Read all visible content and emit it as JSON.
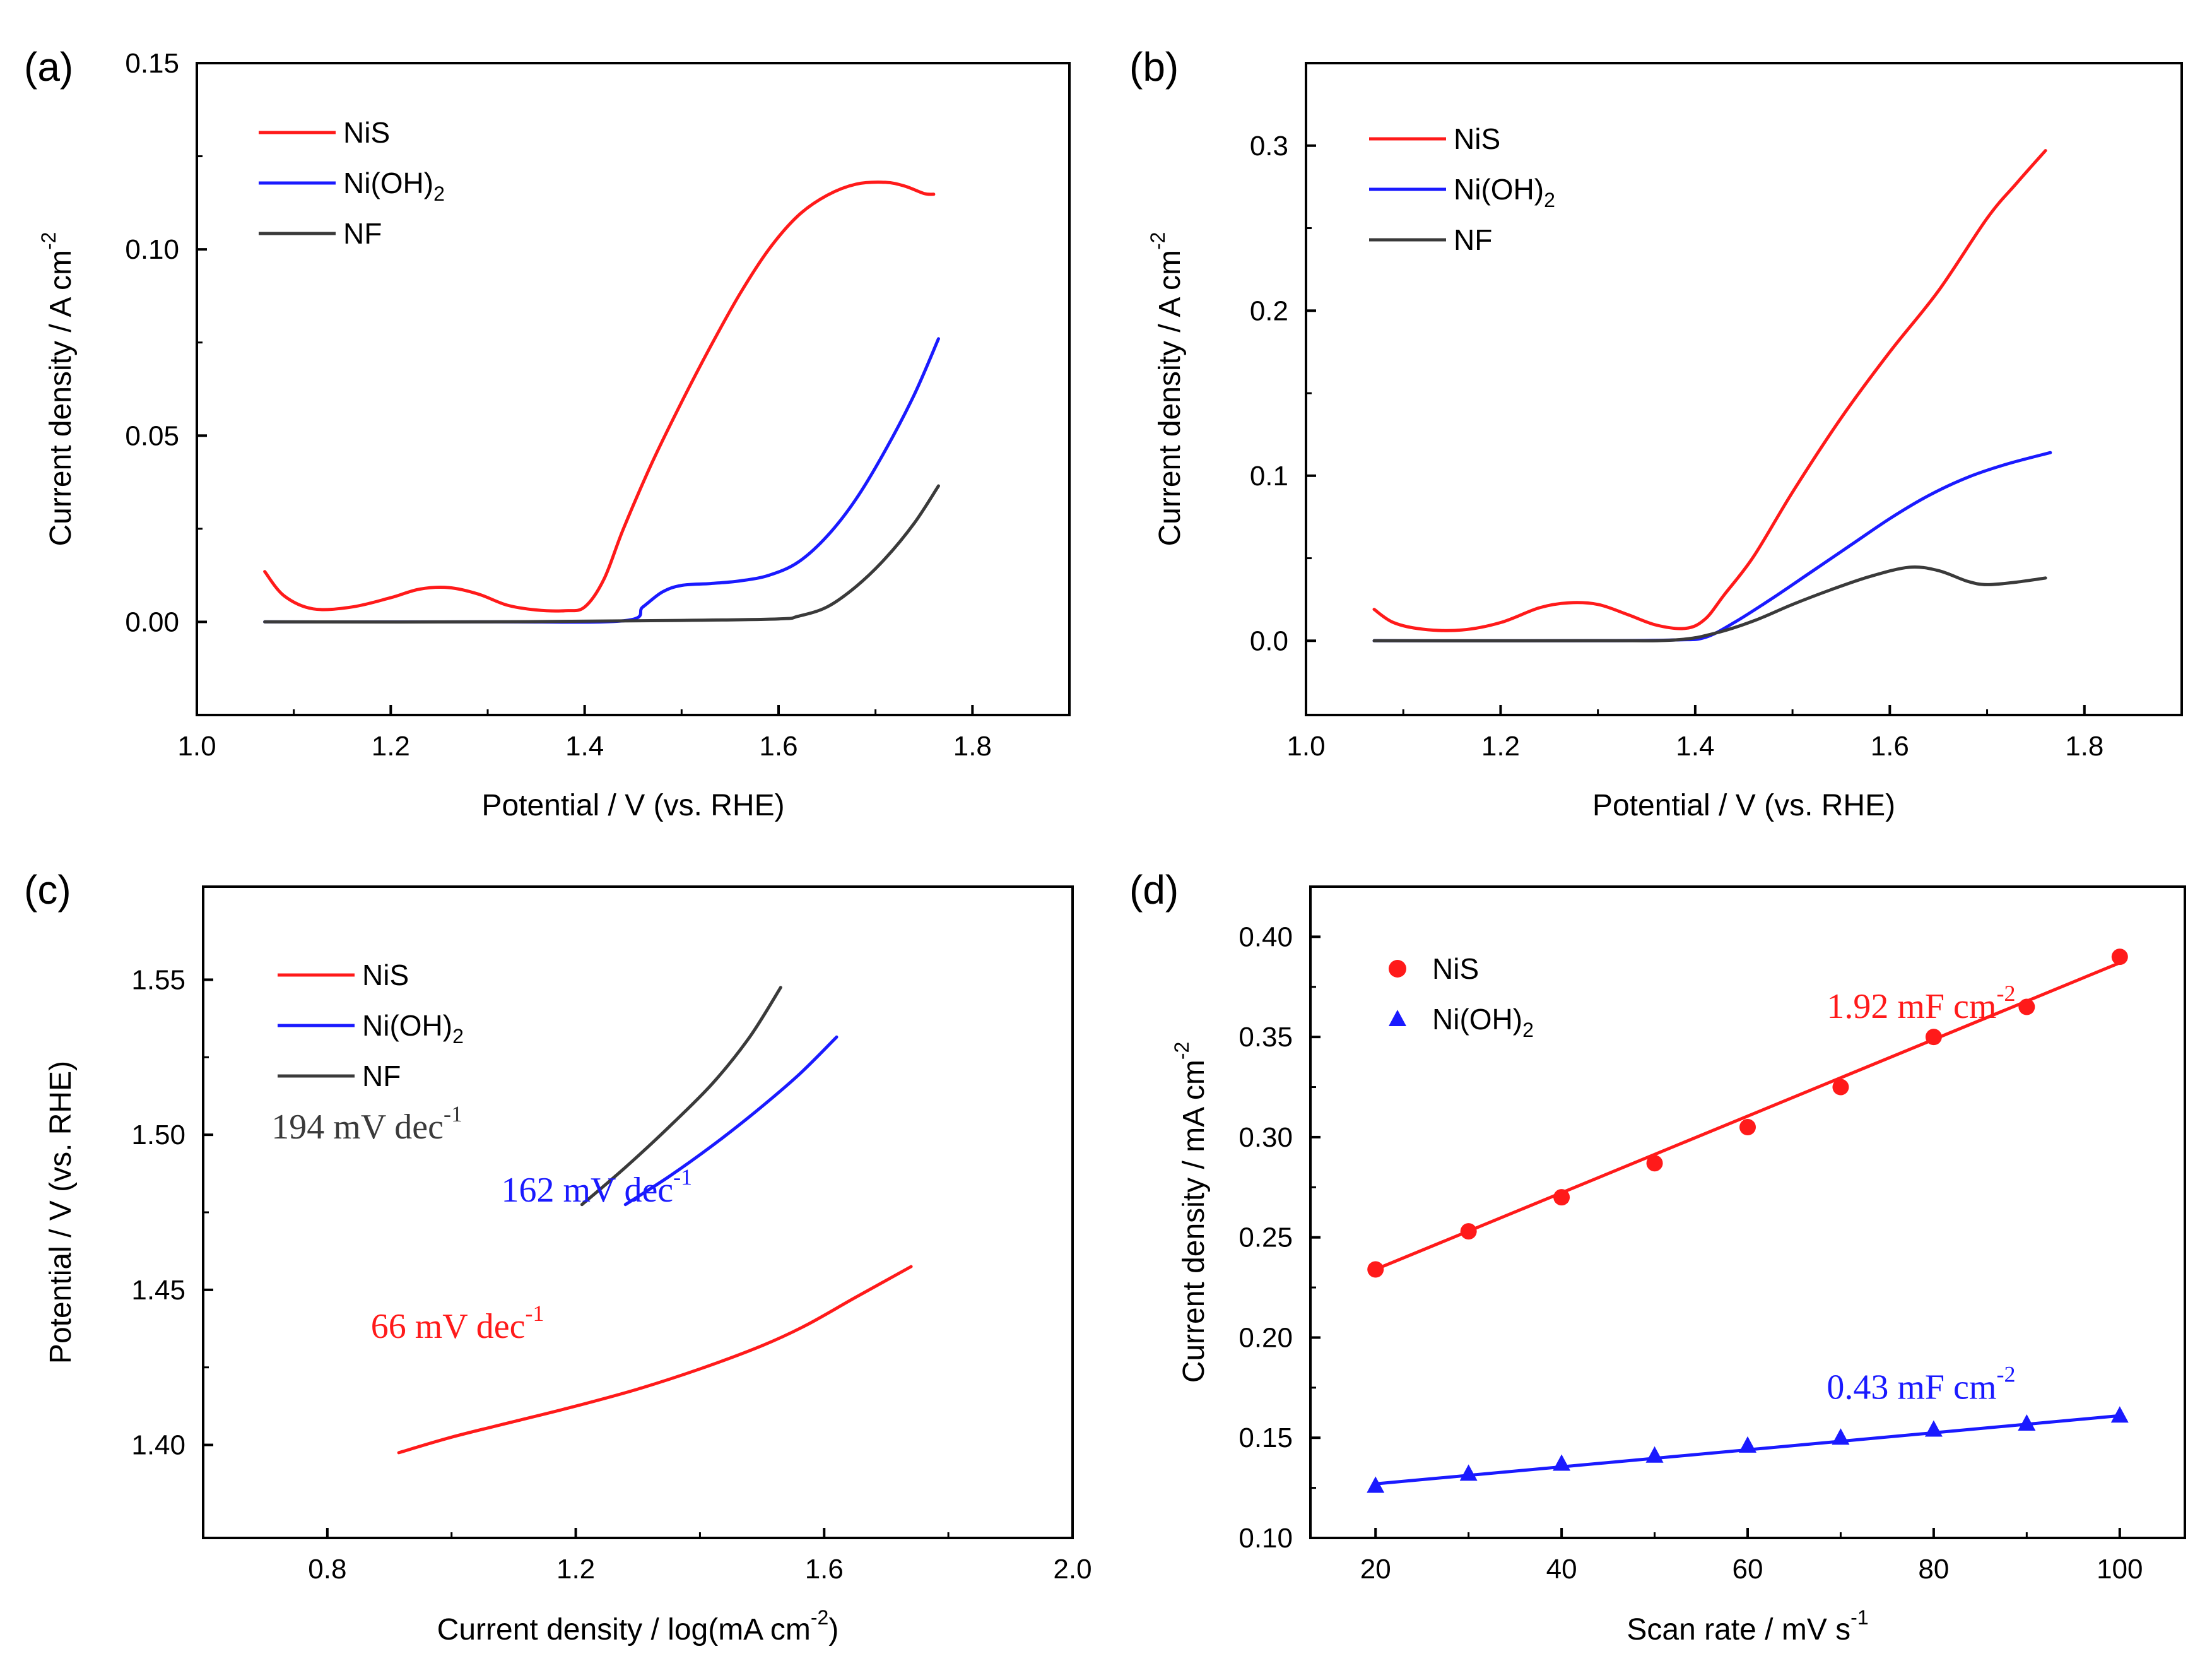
{
  "colors": {
    "NiS": "#ff1a1a",
    "NiOH2": "#1a1aff",
    "NF": "#3a3a3a",
    "axis": "#000000"
  },
  "chart_data": [
    {
      "id": "a",
      "panel_label": "(a)",
      "type": "line",
      "xlabel": "Potential / V (vs. RHE)",
      "ylabel": "Current density / A cm",
      "ylabel_sup": "-2",
      "xlim": [
        1.0,
        1.9
      ],
      "ylim": [
        -0.025,
        0.15
      ],
      "xticks": [
        1.0,
        1.2,
        1.4,
        1.6,
        1.8
      ],
      "xtick_labels": [
        "1.0",
        "1.2",
        "1.4",
        "1.6",
        "1.8"
      ],
      "yticks": [
        0.0,
        0.05,
        0.1,
        0.15
      ],
      "ytick_labels": [
        "0.00",
        "0.05",
        "0.10",
        "0.15"
      ],
      "legend": [
        "NiS",
        "Ni(OH)2",
        "NF"
      ],
      "series": [
        {
          "name": "NiS",
          "color_key": "NiS",
          "x": [
            1.07,
            1.09,
            1.12,
            1.16,
            1.2,
            1.23,
            1.26,
            1.29,
            1.32,
            1.35,
            1.38,
            1.4,
            1.42,
            1.44,
            1.47,
            1.5,
            1.53,
            1.56,
            1.59,
            1.62,
            1.65,
            1.68,
            1.71,
            1.73,
            1.75,
            1.76
          ],
          "y": [
            0.0135,
            0.007,
            0.0035,
            0.004,
            0.0065,
            0.0088,
            0.0092,
            0.0075,
            0.0045,
            0.0032,
            0.003,
            0.004,
            0.0115,
            0.025,
            0.043,
            0.059,
            0.074,
            0.088,
            0.1,
            0.109,
            0.1145,
            0.1175,
            0.118,
            0.117,
            0.115,
            0.1148
          ]
        },
        {
          "name": "Ni(OH)2",
          "color_key": "NiOH2",
          "x": [
            1.07,
            1.3,
            1.44,
            1.46,
            1.48,
            1.5,
            1.53,
            1.56,
            1.59,
            1.62,
            1.65,
            1.68,
            1.71,
            1.74,
            1.765
          ],
          "y": [
            0.0,
            0.0,
            0.0003,
            0.004,
            0.008,
            0.0098,
            0.0103,
            0.011,
            0.0125,
            0.016,
            0.023,
            0.033,
            0.046,
            0.061,
            0.076
          ]
        },
        {
          "name": "NF",
          "color_key": "NF",
          "x": [
            1.07,
            1.3,
            1.5,
            1.6,
            1.62,
            1.65,
            1.68,
            1.71,
            1.74,
            1.765
          ],
          "y": [
            0.0,
            0.0,
            0.0004,
            0.0008,
            0.0015,
            0.004,
            0.0095,
            0.017,
            0.0265,
            0.0365
          ]
        }
      ]
    },
    {
      "id": "b",
      "panel_label": "(b)",
      "type": "line",
      "xlabel": "Potential / V (vs. RHE)",
      "ylabel": "Current density / A cm",
      "ylabel_sup": "-2",
      "xlim": [
        1.0,
        1.9
      ],
      "ylim": [
        -0.045,
        0.35
      ],
      "xticks": [
        1.0,
        1.2,
        1.4,
        1.6,
        1.8
      ],
      "xtick_labels": [
        "1.0",
        "1.2",
        "1.4",
        "1.6",
        "1.8"
      ],
      "yticks": [
        0.0,
        0.1,
        0.2,
        0.3
      ],
      "ytick_labels": [
        "0.0",
        "0.1",
        "0.2",
        "0.3"
      ],
      "legend": [
        "NiS",
        "Ni(OH)2",
        "NF"
      ],
      "series": [
        {
          "name": "NiS",
          "color_key": "NiS",
          "x": [
            1.07,
            1.09,
            1.12,
            1.16,
            1.2,
            1.24,
            1.27,
            1.3,
            1.33,
            1.36,
            1.39,
            1.41,
            1.43,
            1.46,
            1.5,
            1.55,
            1.6,
            1.65,
            1.7,
            1.73,
            1.76
          ],
          "y": [
            0.019,
            0.011,
            0.007,
            0.0065,
            0.011,
            0.02,
            0.023,
            0.022,
            0.016,
            0.0095,
            0.0075,
            0.013,
            0.028,
            0.051,
            0.09,
            0.135,
            0.175,
            0.212,
            0.256,
            0.277,
            0.297
          ]
        },
        {
          "name": "Ni(OH)2",
          "color_key": "NiOH2",
          "x": [
            1.07,
            1.3,
            1.38,
            1.41,
            1.44,
            1.48,
            1.52,
            1.56,
            1.6,
            1.64,
            1.68,
            1.72,
            1.765
          ],
          "y": [
            0.0,
            0.0,
            0.0005,
            0.002,
            0.011,
            0.026,
            0.042,
            0.058,
            0.074,
            0.088,
            0.099,
            0.107,
            0.114
          ]
        },
        {
          "name": "NF",
          "color_key": "NF",
          "x": [
            1.07,
            1.3,
            1.38,
            1.42,
            1.46,
            1.5,
            1.54,
            1.58,
            1.62,
            1.65,
            1.68,
            1.7,
            1.73,
            1.76
          ],
          "y": [
            0.0,
            0.0,
            0.0005,
            0.0045,
            0.012,
            0.022,
            0.031,
            0.039,
            0.0445,
            0.0425,
            0.036,
            0.034,
            0.0355,
            0.038
          ]
        }
      ]
    },
    {
      "id": "c",
      "panel_label": "(c)",
      "type": "line",
      "xlabel": "Current density / log(mA cm",
      "xlabel_sup": "-2",
      "xlabel_end": ")",
      "ylabel": "Potential / V (vs. RHE)",
      "xlim": [
        0.6,
        2.0
      ],
      "ylim": [
        1.37,
        1.58
      ],
      "xticks": [
        0.8,
        1.2,
        1.6,
        2.0
      ],
      "xtick_labels": [
        "0.8",
        "1.2",
        "1.6",
        "2.0"
      ],
      "yticks": [
        1.4,
        1.45,
        1.5,
        1.55
      ],
      "ytick_labels": [
        "1.40",
        "1.45",
        "1.50",
        "1.55"
      ],
      "legend": [
        "NiS",
        "Ni(OH)2",
        "NF"
      ],
      "annotations": [
        {
          "label_key": "NF",
          "text": "194 mV dec",
          "sup": "-1",
          "x": 0.71,
          "y": 1.4988
        },
        {
          "label_key": "NiOH2",
          "text": "162 mV dec",
          "sup": "-1",
          "x": 1.08,
          "y": 1.4785
        },
        {
          "label_key": "NiS",
          "text": "66 mV dec",
          "sup": "-1",
          "x": 0.87,
          "y": 1.4345
        }
      ],
      "series": [
        {
          "name": "NiS",
          "color_key": "NiS",
          "x": [
            0.915,
            1.0,
            1.1,
            1.2,
            1.3,
            1.4,
            1.5,
            1.57,
            1.65,
            1.74
          ],
          "y": [
            1.3975,
            1.4025,
            1.4075,
            1.4125,
            1.418,
            1.4245,
            1.432,
            1.4385,
            1.4475,
            1.4575
          ]
        },
        {
          "name": "Ni(OH)2",
          "color_key": "NiOH2",
          "x": [
            1.28,
            1.35,
            1.42,
            1.49,
            1.56,
            1.62
          ],
          "y": [
            1.4775,
            1.4865,
            1.4965,
            1.5075,
            1.5195,
            1.5315
          ]
        },
        {
          "name": "NF",
          "color_key": "NF",
          "x": [
            1.21,
            1.28,
            1.35,
            1.42,
            1.48,
            1.53
          ],
          "y": [
            1.4775,
            1.4895,
            1.5025,
            1.5165,
            1.5315,
            1.5475
          ]
        }
      ]
    },
    {
      "id": "d",
      "panel_label": "(d)",
      "type": "scatter",
      "xlabel": "Scan rate / mV s",
      "xlabel_sup": "-1",
      "ylabel": "Current density / mA cm",
      "ylabel_sup": "-2",
      "xlim": [
        13,
        107
      ],
      "ylim": [
        0.1,
        0.425
      ],
      "xticks": [
        20,
        40,
        60,
        80,
        100
      ],
      "xtick_labels": [
        "20",
        "40",
        "60",
        "80",
        "100"
      ],
      "yticks": [
        0.1,
        0.15,
        0.2,
        0.25,
        0.3,
        0.35,
        0.4
      ],
      "ytick_labels": [
        "0.10",
        "0.15",
        "0.20",
        "0.25",
        "0.30",
        "0.35",
        "0.40"
      ],
      "legend": [
        "NiS",
        "Ni(OH)2"
      ],
      "annotations": [
        {
          "label_key": "NiS",
          "text": "1.92 mF cm",
          "sup": "-2",
          "x": 68.5,
          "y": 0.3595
        },
        {
          "label_key": "NiOH2",
          "text": "0.43 mF cm",
          "sup": "-2",
          "x": 68.5,
          "y": 0.1695
        }
      ],
      "series": [
        {
          "name": "NiS",
          "color_key": "NiS",
          "marker": "circle",
          "x": [
            20,
            30,
            40,
            50,
            60,
            70,
            80,
            90,
            100
          ],
          "y": [
            0.234,
            0.253,
            0.27,
            0.287,
            0.305,
            0.325,
            0.35,
            0.365,
            0.39
          ],
          "fit": {
            "x": [
              20,
              100
            ],
            "y": [
              0.234,
              0.387
            ]
          }
        },
        {
          "name": "Ni(OH)2",
          "color_key": "NiOH2",
          "marker": "triangle",
          "x": [
            20,
            30,
            40,
            50,
            60,
            70,
            80,
            90,
            100
          ],
          "y": [
            0.126,
            0.132,
            0.137,
            0.141,
            0.146,
            0.15,
            0.154,
            0.157,
            0.161
          ],
          "fit": {
            "x": [
              20,
              100
            ],
            "y": [
              0.127,
              0.161
            ]
          }
        }
      ]
    }
  ]
}
